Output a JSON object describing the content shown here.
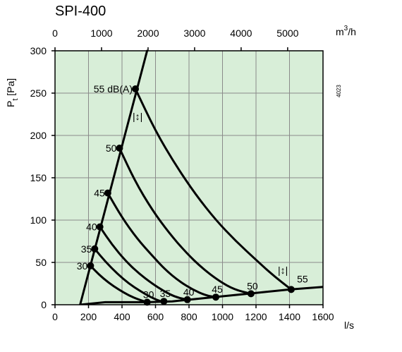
{
  "chart_data": {
    "type": "line",
    "title": "SPI-400",
    "ylabel_main": "P",
    "ylabel_sub": "t",
    "ylabel_unit": "[Pa]",
    "xlabel_bottom": "l/s",
    "xlabel_top_main": "m",
    "xlabel_top_sup": "3",
    "xlabel_top_unit": "/h",
    "side_code": "4023",
    "flow_marker": "|↕|",
    "xlim": [
      0,
      1600
    ],
    "ylim": [
      0,
      300
    ],
    "top_xlim": [
      0,
      5760
    ],
    "grid": true,
    "background_color": "#d8eed8",
    "x_ticks": [
      0,
      200,
      400,
      600,
      800,
      1000,
      1200,
      1400,
      1600
    ],
    "y_ticks": [
      0,
      50,
      100,
      150,
      200,
      250,
      300
    ],
    "top_ticks": [
      0,
      1000,
      2000,
      3000,
      4000,
      5000
    ],
    "lines": [
      {
        "name": "max_limit",
        "points": [
          [
            150,
            0
          ],
          [
            550,
            300
          ]
        ]
      },
      {
        "name": "min_limit",
        "points": [
          [
            150,
            0
          ],
          [
            300,
            3
          ],
          [
            550,
            3
          ],
          [
            700,
            4
          ],
          [
            850,
            7
          ],
          [
            1000,
            10
          ],
          [
            1200,
            14
          ],
          [
            1400,
            18
          ],
          [
            1600,
            21
          ]
        ]
      }
    ],
    "series": [
      {
        "name": "55 dB(A)",
        "points": [
          [
            480,
            255
          ],
          [
            600,
            205
          ],
          [
            720,
            165
          ],
          [
            840,
            130
          ],
          [
            960,
            100
          ],
          [
            1080,
            75
          ],
          [
            1200,
            53
          ],
          [
            1300,
            35
          ],
          [
            1410,
            18
          ]
        ],
        "label_at": [
          480,
          255
        ],
        "end_label": "55"
      },
      {
        "name": "50",
        "points": [
          [
            385,
            185
          ],
          [
            480,
            145
          ],
          [
            580,
            112
          ],
          [
            680,
            85
          ],
          [
            780,
            62
          ],
          [
            880,
            43
          ],
          [
            980,
            28
          ],
          [
            1070,
            18
          ],
          [
            1170,
            13
          ]
        ],
        "label_at": [
          385,
          185
        ],
        "end_label": "50"
      },
      {
        "name": "45",
        "points": [
          [
            315,
            132
          ],
          [
            400,
            103
          ],
          [
            490,
            78
          ],
          [
            580,
            58
          ],
          [
            660,
            41
          ],
          [
            740,
            28
          ],
          [
            820,
            18
          ],
          [
            900,
            11
          ],
          [
            960,
            9
          ]
        ],
        "label_at": [
          315,
          132
        ],
        "end_label": "45"
      },
      {
        "name": "40",
        "points": [
          [
            268,
            92
          ],
          [
            340,
            71
          ],
          [
            420,
            52
          ],
          [
            500,
            37
          ],
          [
            580,
            25
          ],
          [
            650,
            16
          ],
          [
            720,
            9
          ],
          [
            790,
            6
          ]
        ],
        "label_at": [
          268,
          92
        ],
        "end_label": "40"
      },
      {
        "name": "35",
        "points": [
          [
            237,
            66
          ],
          [
            300,
            51
          ],
          [
            370,
            37
          ],
          [
            440,
            25
          ],
          [
            510,
            16
          ],
          [
            570,
            9
          ],
          [
            630,
            4
          ],
          [
            650,
            4
          ]
        ],
        "label_at": [
          237,
          66
        ],
        "end_label": "35"
      },
      {
        "name": "30",
        "points": [
          [
            212,
            46
          ],
          [
            260,
            36
          ],
          [
            320,
            26
          ],
          [
            380,
            18
          ],
          [
            440,
            11
          ],
          [
            500,
            6
          ],
          [
            550,
            3
          ]
        ],
        "label_at": [
          212,
          46
        ],
        "end_label": "30"
      }
    ]
  }
}
